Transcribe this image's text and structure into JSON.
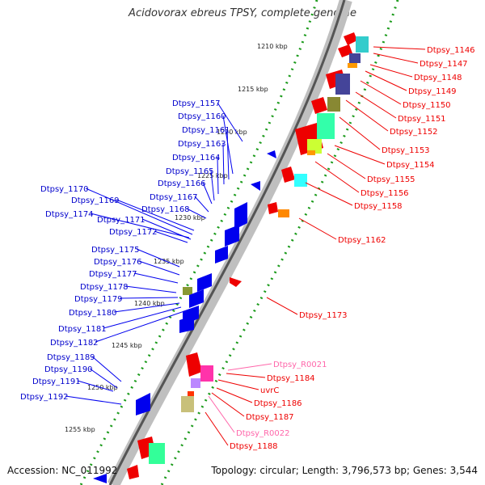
{
  "header": {
    "title": "Acidovorax ebreus TPSY, complete genome"
  },
  "footer": {
    "accession": "Accession: NC_011992",
    "summary": "Topology: circular; Length: 3,796,573 bp; Genes: 3,544"
  },
  "scale_labels": [
    "1210 kbp",
    "1215 kbp",
    "1220 kbp",
    "1225 kbp",
    "1230 kbp",
    "1235 kbp",
    "1240 kbp",
    "1245 kbp",
    "1250 kbp",
    "1255 kbp"
  ],
  "left_labels": [
    "Dtpsy_1157",
    "Dtpsy_1160",
    "Dtpsy_1161",
    "Dtpsy_1163",
    "Dtpsy_1164",
    "Dtpsy_1165",
    "Dtpsy_1166",
    "Dtpsy_1167",
    "Dtpsy_1168",
    "Dtpsy_1169",
    "Dtpsy_1170",
    "Dtpsy_1171",
    "Dtpsy_1172",
    "Dtpsy_1174",
    "Dtpsy_1175",
    "Dtpsy_1176",
    "Dtpsy_1177",
    "Dtpsy_1178",
    "Dtpsy_1179",
    "Dtpsy_1180",
    "Dtpsy_1181",
    "Dtpsy_1182",
    "Dtpsy_1189",
    "Dtpsy_1190",
    "Dtpsy_1191",
    "Dtpsy_1192"
  ],
  "right_labels": [
    "Dtpsy_1146",
    "Dtpsy_1147",
    "Dtpsy_1148",
    "Dtpsy_1149",
    "Dtpsy_1150",
    "Dtpsy_1151",
    "Dtpsy_1152",
    "Dtpsy_1153",
    "Dtpsy_1154",
    "Dtpsy_1155",
    "Dtpsy_1156",
    "Dtpsy_1158",
    "Dtpsy_1162",
    "Dtpsy_1173",
    "Dtpsy_R0021",
    "Dtpsy_1184",
    "uvrC",
    "Dtpsy_1186",
    "Dtpsy_1187",
    "Dtpsy_R0022",
    "Dtpsy_1188"
  ],
  "colors": {
    "reverse_strand": "#0000ee",
    "forward_strand": "#ee0000",
    "rna": "#ff66aa",
    "backbone": "#555555",
    "gc_dots": "#1a9a1a"
  }
}
